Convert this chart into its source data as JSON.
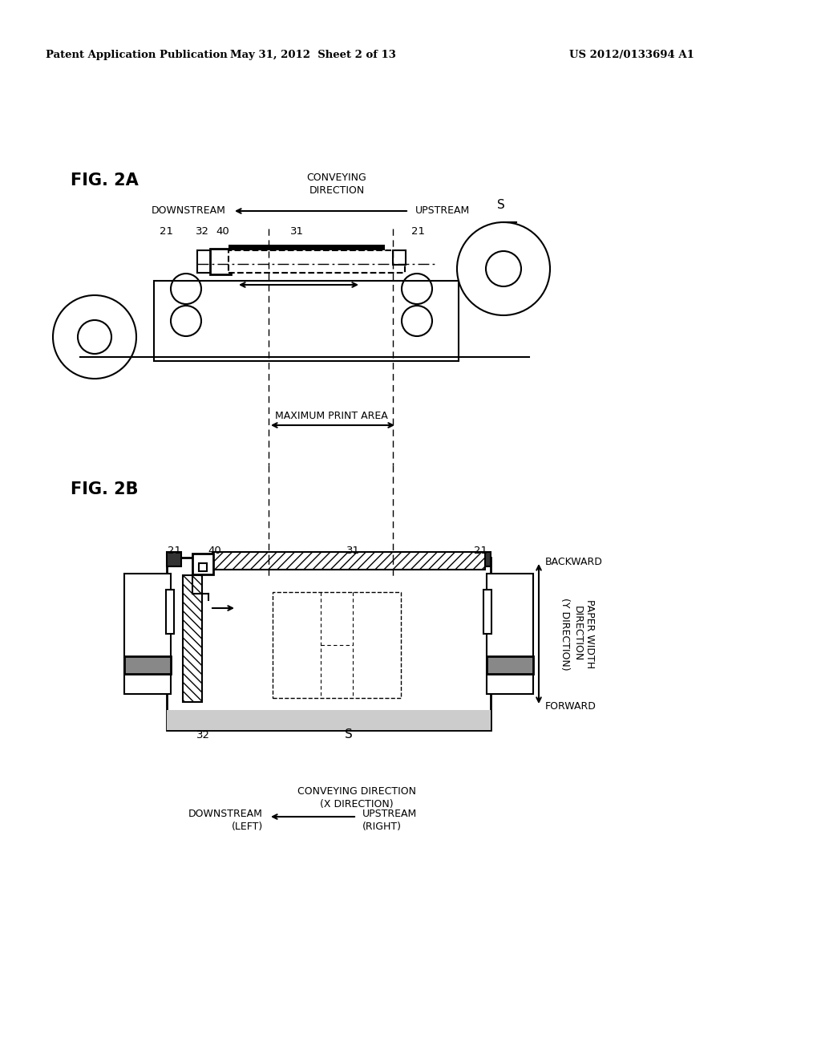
{
  "bg_color": "#ffffff",
  "header_left": "Patent Application Publication",
  "header_mid": "May 31, 2012  Sheet 2 of 13",
  "header_right": "US 2012/0133694 A1",
  "fig2a_label": "FIG. 2A",
  "fig2b_label": "FIG. 2B",
  "conveying_dir_label": "CONVEYING\nDIRECTION",
  "downstream_label": "DOWNSTREAM",
  "upstream_label": "UPSTREAM",
  "max_print_label": "MAXIMUM PRINT AREA",
  "s_label": "S",
  "label_21a": "21",
  "label_21b": "21",
  "label_31": "31",
  "label_32": "32",
  "label_40": "40",
  "label_21c": "21",
  "label_21d": "21",
  "label_31b": "31",
  "label_32b": "32",
  "label_40b": "40",
  "label_s2": "S",
  "backward_label": "BACKWARD",
  "forward_label": "FORWARD",
  "paper_width_label": "PAPER WIDTH\nDIRECTION\n(Y DIRECTION)",
  "conv_dir_x_label": "CONVEYING DIRECTION\n(X DIRECTION)",
  "downstream_left_label": "DOWNSTREAM\n(LEFT)",
  "upstream_right_label": "UPSTREAM\n(RIGHT)"
}
